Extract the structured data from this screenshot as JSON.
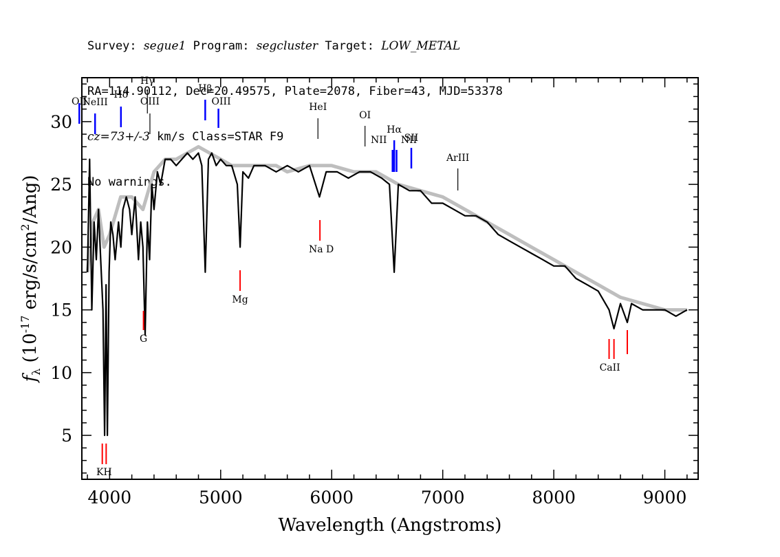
{
  "header": {
    "survey_label": "Survey: ",
    "survey": "segue1",
    "program_label": " Program: ",
    "program": "segcluster",
    "target_label": " Target: ",
    "target": "LOW_METAL",
    "line2": "RA=114.90112, Dec=20.49575, Plate=2078, Fiber=43, MJD=53378",
    "cz_label": "cz=73+/-3",
    "line3_rest": " km/s Class=STAR F9",
    "line4": "No warnings."
  },
  "chart_data": {
    "type": "line",
    "xlabel": "Wavelength (Angstroms)",
    "ylabel_prefix": "f",
    "ylabel_sub": "λ",
    "ylabel_main": " (10",
    "ylabel_exp": "-17",
    "ylabel_rest": " erg/s/cm",
    "ylabel_exp2": "2",
    "ylabel_end": "/Ang)",
    "xlim": [
      3750,
      9300
    ],
    "ylim": [
      1.5,
      33.5
    ],
    "xticks": [
      "4000",
      "5000",
      "6000",
      "7000",
      "8000",
      "9000"
    ],
    "yticks": [
      "5",
      "10",
      "15",
      "20",
      "25",
      "30"
    ],
    "series": [
      {
        "role": "flux",
        "color": "#000000",
        "x": [
          3800,
          3820,
          3840,
          3860,
          3880,
          3900,
          3920,
          3940,
          3955,
          3968,
          3980,
          3995,
          4010,
          4030,
          4050,
          4080,
          4101,
          4120,
          4150,
          4180,
          4200,
          4230,
          4260,
          4280,
          4300,
          4320,
          4340,
          4360,
          4380,
          4400,
          4430,
          4460,
          4500,
          4550,
          4600,
          4650,
          4700,
          4750,
          4800,
          4830,
          4861,
          4890,
          4920,
          4960,
          5000,
          5050,
          5100,
          5150,
          5175,
          5200,
          5250,
          5300,
          5400,
          5500,
          5600,
          5700,
          5800,
          5890,
          5950,
          6050,
          6150,
          6250,
          6350,
          6450,
          6520,
          6563,
          6600,
          6700,
          6800,
          6900,
          7000,
          7100,
          7200,
          7300,
          7400,
          7500,
          7600,
          7700,
          7800,
          7900,
          8000,
          8100,
          8200,
          8300,
          8400,
          8498,
          8542,
          8600,
          8662,
          8700,
          8800,
          8900,
          9000,
          9100,
          9200
        ],
        "y": [
          18,
          27,
          15,
          22,
          19,
          23,
          19,
          15,
          5,
          17,
          5,
          18,
          22,
          21,
          19,
          22,
          20,
          23,
          24,
          23,
          21,
          24,
          19,
          22,
          20,
          13,
          22,
          19,
          25,
          23,
          26,
          25,
          27,
          27,
          26.5,
          27,
          27.5,
          27,
          27.5,
          26.5,
          18,
          27,
          27.5,
          26.5,
          27,
          26.5,
          26.5,
          25,
          20,
          26,
          25.5,
          26.5,
          26.5,
          26,
          26.5,
          26,
          26.5,
          24,
          26,
          26,
          25.5,
          26,
          26,
          25.5,
          25,
          18,
          25,
          24.5,
          24.5,
          23.5,
          23.5,
          23,
          22.5,
          22.5,
          22,
          21,
          20.5,
          20,
          19.5,
          19,
          18.5,
          18.5,
          17.5,
          17,
          16.5,
          15,
          13.5,
          15.5,
          14,
          15.5,
          15,
          15,
          15,
          14.5,
          15
        ]
      },
      {
        "role": "model",
        "color": "#bebebe",
        "x": [
          3800,
          3850,
          3900,
          3950,
          4000,
          4100,
          4200,
          4300,
          4400,
          4500,
          4600,
          4700,
          4800,
          4900,
          5000,
          5100,
          5200,
          5300,
          5400,
          5500,
          5600,
          5800,
          6000,
          6200,
          6400,
          6600,
          6800,
          7000,
          7200,
          7400,
          7600,
          7800,
          8000,
          8200,
          8400,
          8600,
          8800,
          9000,
          9200
        ],
        "y": [
          18,
          22,
          23,
          20,
          21,
          24,
          24,
          23,
          26,
          27,
          27,
          27.5,
          28,
          27.5,
          27,
          26.5,
          26.5,
          26.5,
          26.5,
          26.5,
          26,
          26.5,
          26.5,
          26,
          26,
          25,
          24.5,
          24,
          23,
          22,
          21,
          20,
          19,
          18,
          17,
          16,
          15.5,
          15,
          15
        ]
      }
    ],
    "emission_lines": [
      {
        "label": "OII",
        "x": 3727,
        "color": "#0000ff"
      },
      {
        "label": "NeIII",
        "x": 3869,
        "color": "#0000ff"
      },
      {
        "label": "Hδ",
        "x": 4102,
        "color": "#0000ff"
      },
      {
        "label": "Hγ",
        "x": 4340,
        "color": "#000000"
      },
      {
        "label": "OIII",
        "x": 4363,
        "color": "#000000"
      },
      {
        "label": "Hβ",
        "x": 4861,
        "color": "#0000ff"
      },
      {
        "label": "OIII",
        "x": 4980,
        "color": "#0000ff"
      },
      {
        "label": "HeI",
        "x": 5876,
        "color": "#000000"
      },
      {
        "label": "OI",
        "x": 6300,
        "color": "#000000"
      },
      {
        "label": "NII",
        "x": 6548,
        "color": "#0000ff"
      },
      {
        "label": "Hα",
        "x": 6563,
        "color": "#0000ff"
      },
      {
        "label": "NII",
        "x": 6584,
        "color": "#0000ff"
      },
      {
        "label": "SII",
        "x": 6717,
        "color": "#0000ff"
      },
      {
        "label": "ArIII",
        "x": 7136,
        "color": "#000000"
      }
    ],
    "absorption_lines": [
      {
        "label": "K",
        "x": 3934,
        "color": "#ff0000"
      },
      {
        "label": "H",
        "x": 3969,
        "color": "#ff0000"
      },
      {
        "label": "G",
        "x": 4305,
        "color": "#ff0000"
      },
      {
        "label": "Mg",
        "x": 5175,
        "color": "#ff0000"
      },
      {
        "label": "Na D",
        "x": 5894,
        "color": "#ff0000"
      },
      {
        "label": "CaII",
        "x": 8542,
        "color": "#ff0000"
      }
    ]
  }
}
